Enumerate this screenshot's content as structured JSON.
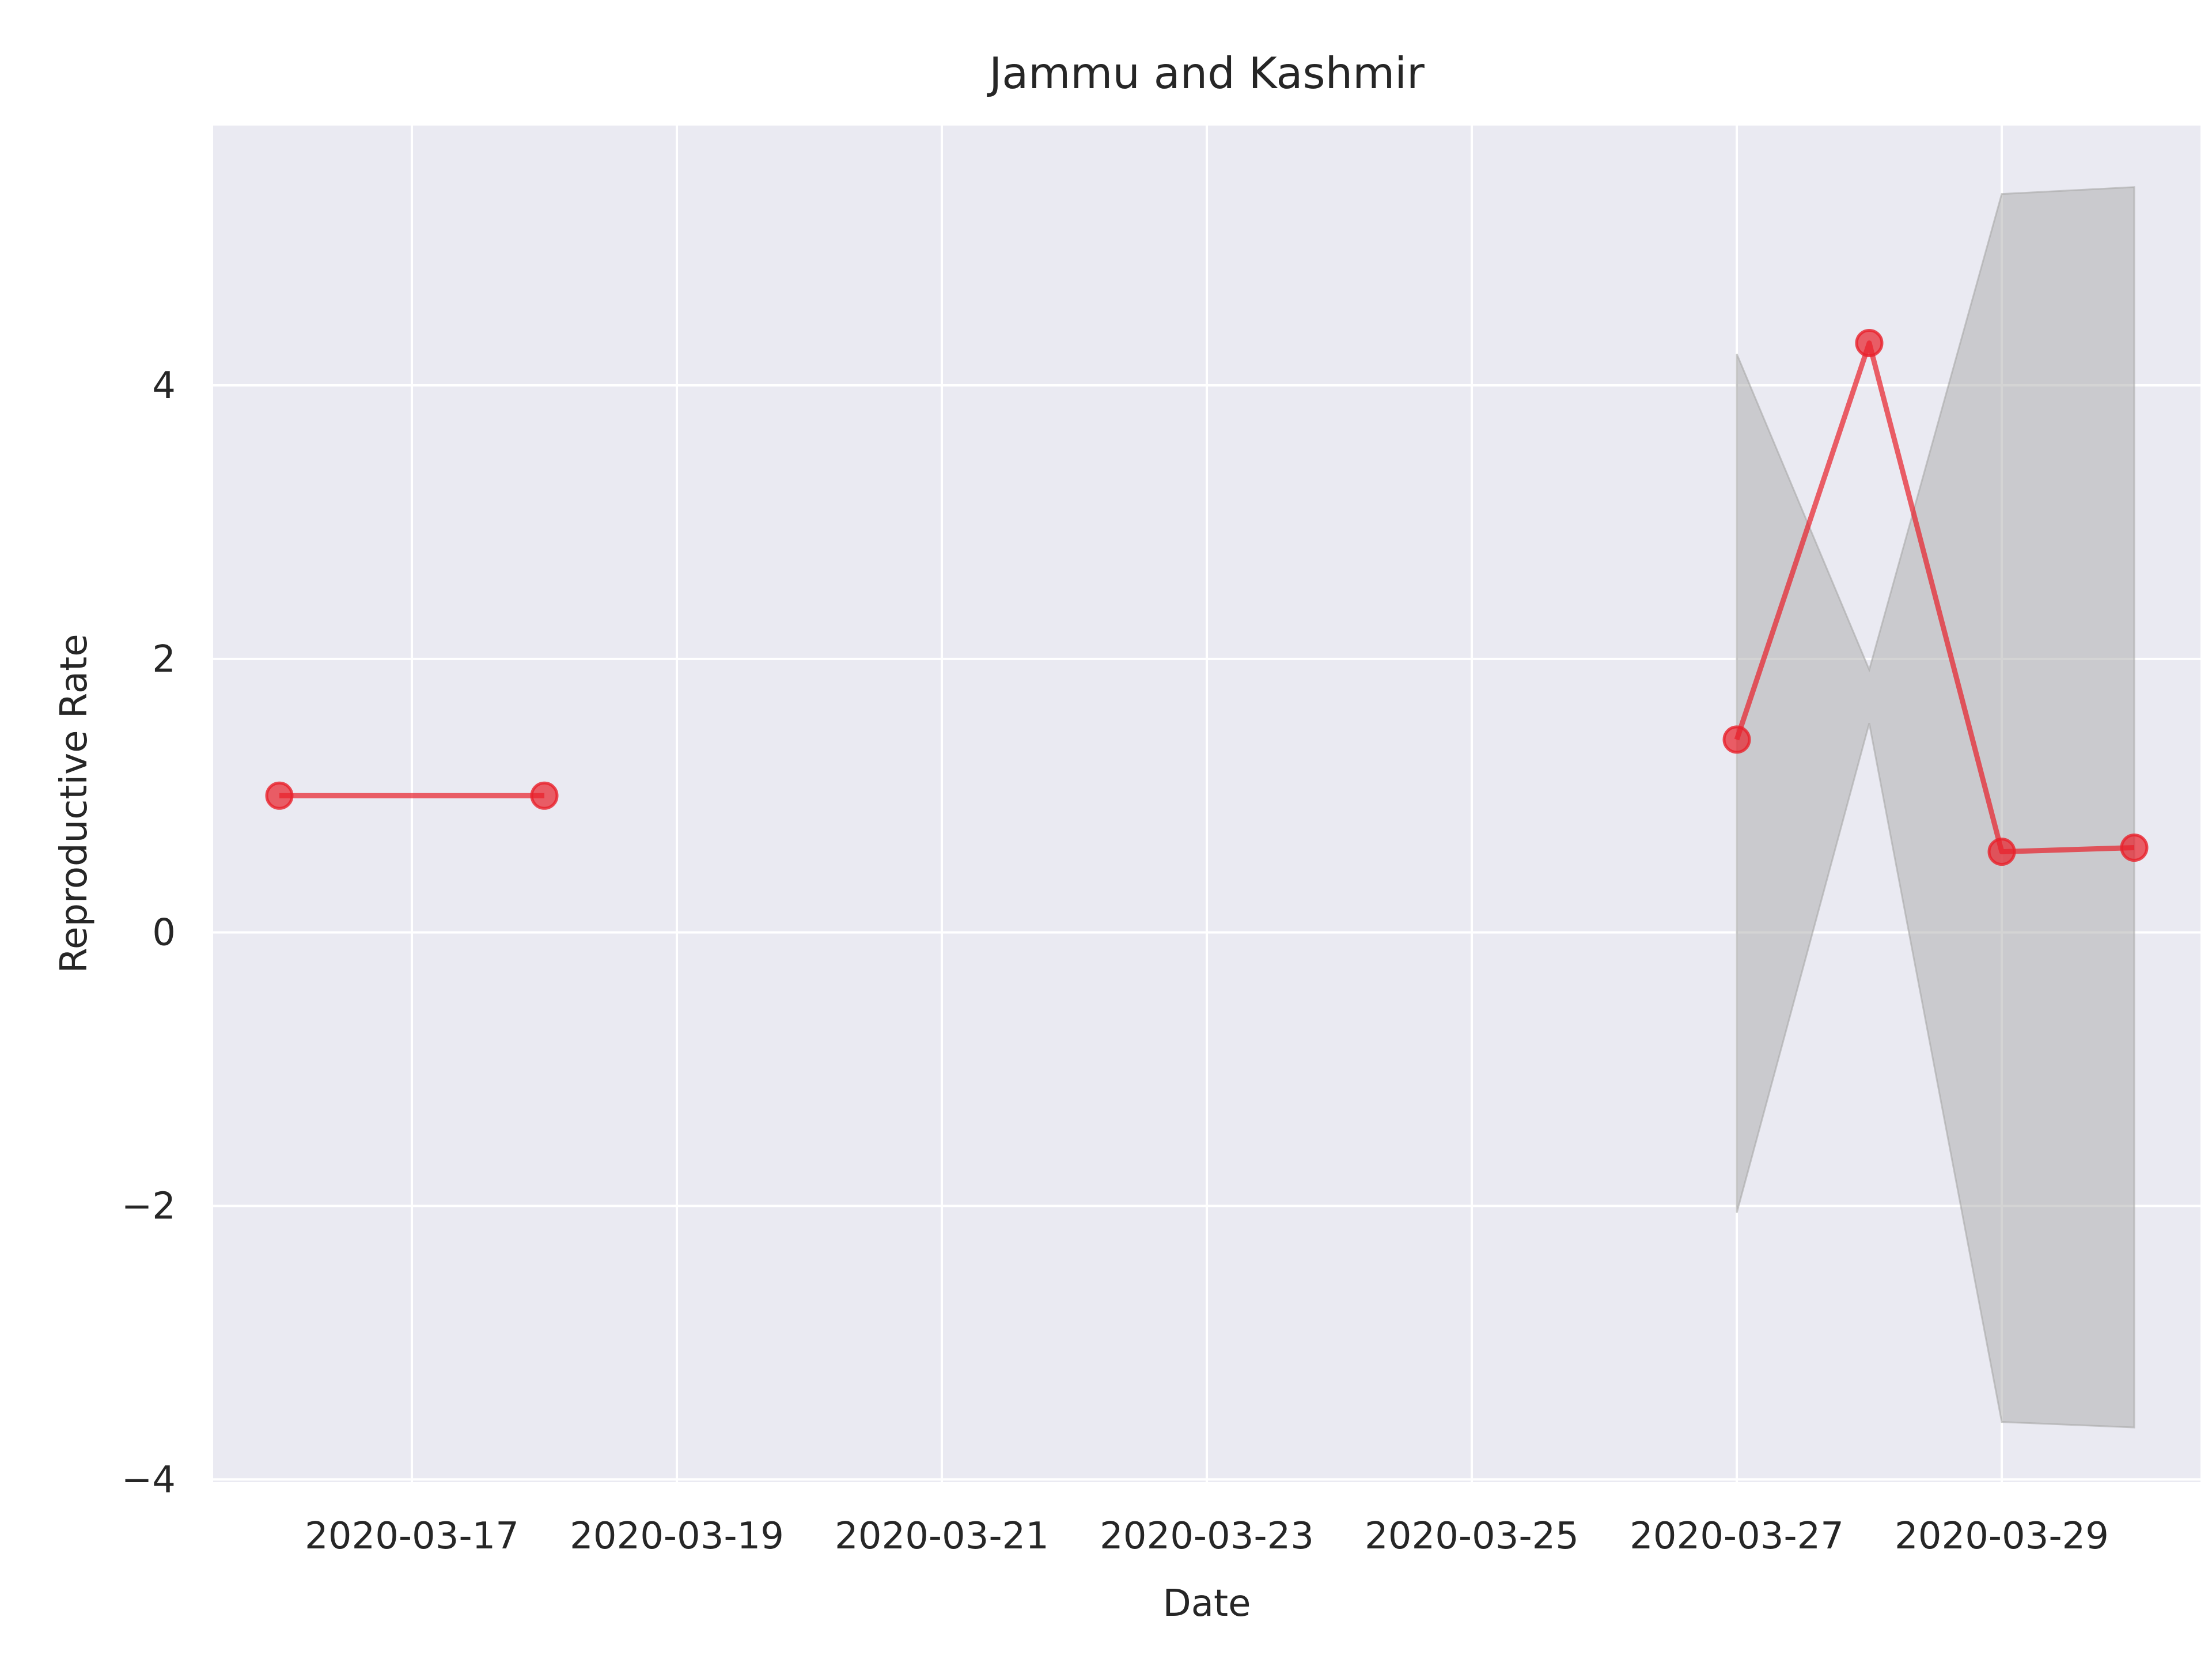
{
  "chart_data": {
    "type": "line",
    "title": "Jammu and Kashmir",
    "xlabel": "Date",
    "ylabel": "Reproductive Rate",
    "x_ticks": [
      "2020-03-17",
      "2020-03-19",
      "2020-03-21",
      "2020-03-23",
      "2020-03-25",
      "2020-03-27",
      "2020-03-29"
    ],
    "y_ticks": [
      4,
      2,
      0,
      -2,
      -4
    ],
    "y_tick_labels": [
      "4",
      "2",
      "0",
      "−2",
      "−4"
    ],
    "xlim": [
      "2020-03-15T12:00",
      "2020-03-30T12:00"
    ],
    "ylim": [
      -4.02,
      5.9
    ],
    "grid": true,
    "colors": {
      "background": "#eaeaf2",
      "grid": "#ffffff",
      "line": "#e8202a",
      "band": "#a9a9a9"
    },
    "series": [
      {
        "segments": [
          [
            {
              "x": "2020-03-16",
              "y": 1.0
            },
            {
              "x": "2020-03-18",
              "y": 1.0
            }
          ],
          [
            {
              "x": "2020-03-27",
              "y": 1.41
            },
            {
              "x": "2020-03-28",
              "y": 4.31
            },
            {
              "x": "2020-03-29",
              "y": 0.59
            },
            {
              "x": "2020-03-30",
              "y": 0.62
            }
          ]
        ]
      }
    ],
    "band": [
      {
        "x": "2020-03-27",
        "lower": -2.05,
        "upper": 4.23
      },
      {
        "x": "2020-03-28",
        "lower": 1.53,
        "upper": 1.92
      },
      {
        "x": "2020-03-29",
        "lower": -3.58,
        "upper": 5.4
      },
      {
        "x": "2020-03-30",
        "lower": -3.62,
        "upper": 5.45
      }
    ]
  }
}
